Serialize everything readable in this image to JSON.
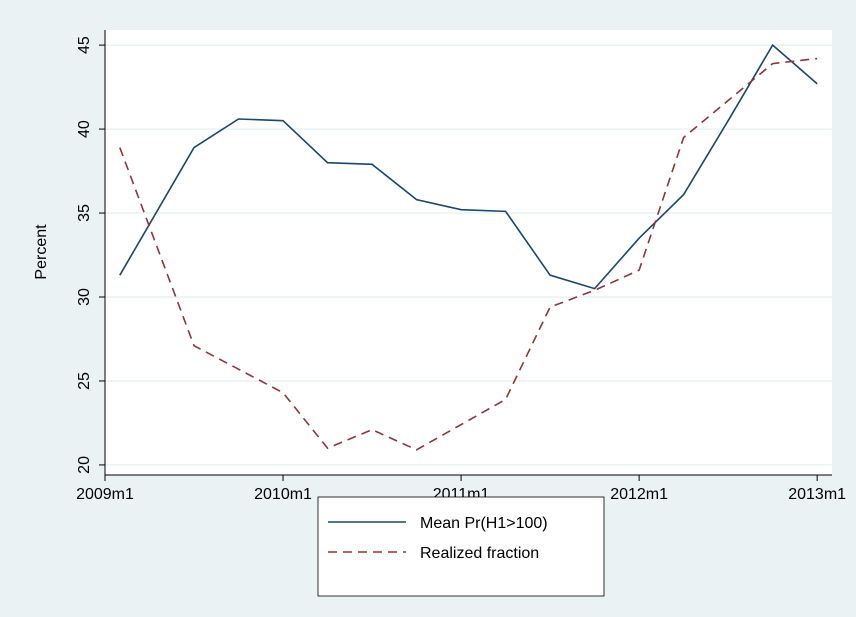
{
  "chart_data": {
    "type": "line",
    "y_label": "Percent",
    "x": [
      589,
      594,
      597,
      600,
      603,
      606,
      609,
      612,
      615,
      618,
      621,
      624,
      627,
      630,
      633,
      636
    ],
    "series": [
      {
        "name": "Mean Pr(H1>100)",
        "color": "#1a476f",
        "dash": "solid",
        "values": [
          31.3,
          38.9,
          40.6,
          40.5,
          38.0,
          37.9,
          35.8,
          35.2,
          35.1,
          31.3,
          30.5,
          33.5,
          36.1,
          40.5,
          45.0,
          42.7
        ]
      },
      {
        "name": "Realized fraction",
        "color": "#90353b",
        "dash": "dashed",
        "values": [
          38.9,
          27.1,
          25.7,
          24.3,
          21.0,
          22.1,
          20.9,
          22.4,
          23.9,
          29.4,
          30.4,
          31.6,
          39.5,
          41.7,
          43.9,
          44.2
        ]
      }
    ],
    "xlim": [
      588,
      637
    ],
    "xticks": [
      {
        "value": 588,
        "label": "2009m1"
      },
      {
        "value": 600,
        "label": "2010m1"
      },
      {
        "value": 612,
        "label": "2011m1"
      },
      {
        "value": 624,
        "label": "2012m1"
      },
      {
        "value": 636,
        "label": "2013m1"
      }
    ],
    "ylim": [
      19.4,
      45.9
    ],
    "yticks": [
      20,
      25,
      30,
      35,
      40,
      45
    ],
    "grid": true,
    "legend": "bottom"
  }
}
